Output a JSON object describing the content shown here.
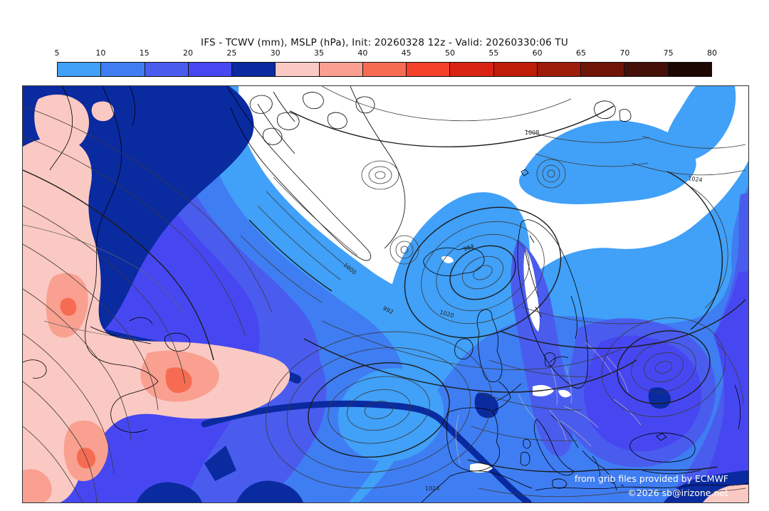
{
  "header": {
    "title": "IFS - TCWV (mm), MSLP (hPa), Init: 20260328 12z - Valid: 20260330:06 TU"
  },
  "colorbar": {
    "unit": "mm",
    "ticks": [
      "5",
      "10",
      "15",
      "20",
      "25",
      "30",
      "35",
      "40",
      "45",
      "50",
      "55",
      "60",
      "65",
      "70",
      "75",
      "80"
    ],
    "colors": [
      "#41a0f7",
      "#3f7df2",
      "#4a5cee",
      "#4747f2",
      "#0a2aa0",
      "#fbc9c3",
      "#f9a091",
      "#f66c53",
      "#f5402a",
      "#da2413",
      "#c01d08",
      "#9e1c0a",
      "#701608",
      "#451008",
      "#1c0703"
    ]
  },
  "map": {
    "attribution_line1": "from grib files provided by ECMWF",
    "attribution_line2": "©2026 sb@irizone.net",
    "isobar_labels": [
      {
        "value": "984"
      },
      {
        "value": "1008"
      },
      {
        "value": "1000"
      },
      {
        "value": "992"
      },
      {
        "value": "1020"
      },
      {
        "value": "1024"
      },
      {
        "value": "1024"
      }
    ]
  }
}
